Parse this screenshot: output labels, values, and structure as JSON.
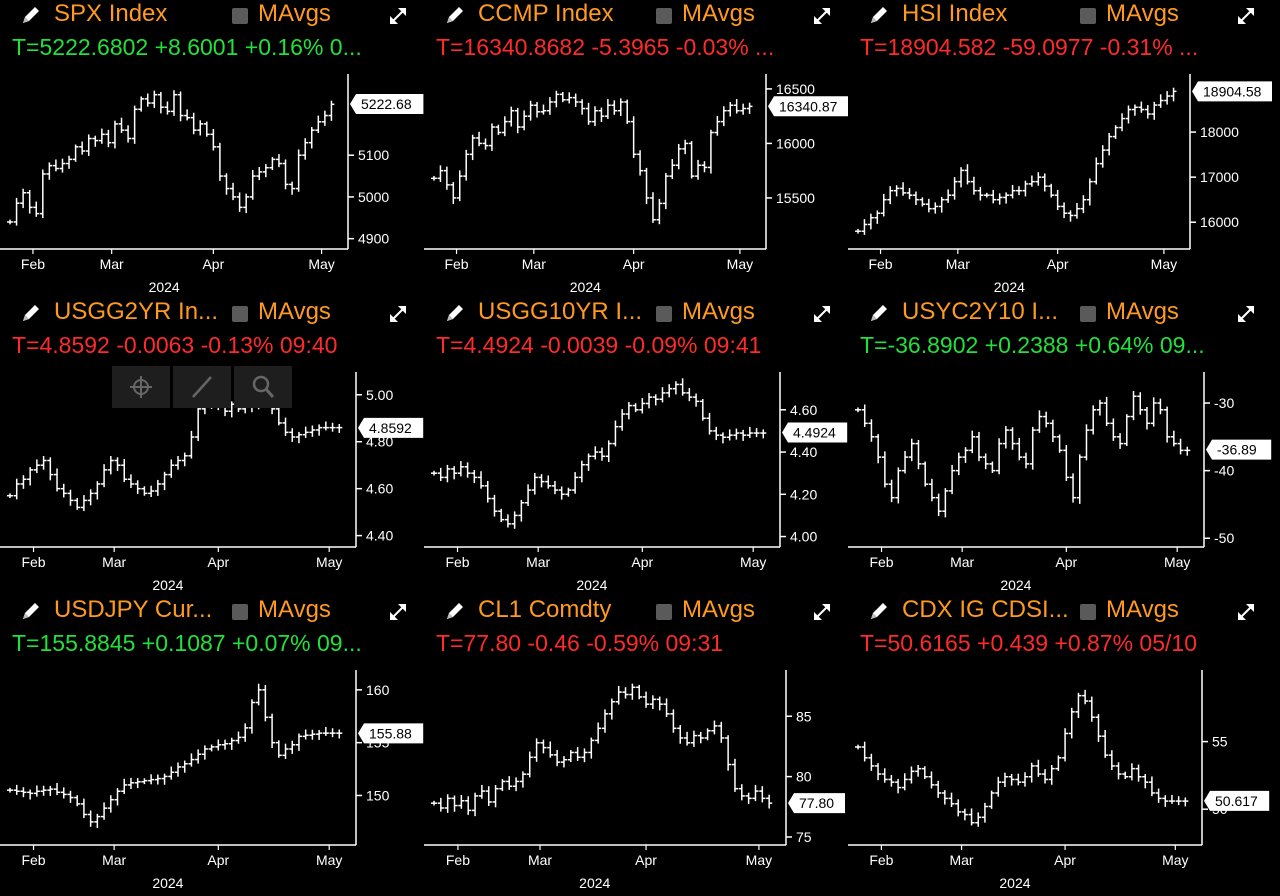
{
  "chart_data": [
    {
      "id": "spx",
      "type": "line",
      "title": "SPX Index",
      "ma_label": "MAvgs",
      "quote": "T=5222.6802 +8.6001 +0.16% 0...",
      "quote_color": "up",
      "x_months": [
        "Feb",
        "Mar",
        "Apr",
        "May"
      ],
      "year": "2024",
      "yticks": [
        4900,
        5000,
        5100
      ],
      "ylim": [
        4880,
        5285
      ],
      "last": 5222.6802,
      "last_label": "5222.68",
      "x": [
        0,
        2,
        4,
        6,
        8,
        10,
        12,
        14,
        16,
        18,
        20,
        22,
        24,
        26,
        28,
        30,
        32,
        34,
        36,
        38,
        40,
        42,
        44,
        46,
        48,
        50,
        52,
        54,
        56,
        58,
        60,
        62,
        64,
        66,
        68,
        70,
        72,
        74,
        76,
        78,
        80,
        82,
        84,
        86,
        88,
        90,
        92,
        94,
        96,
        98
      ],
      "values": [
        4940,
        4985,
        5010,
        4975,
        4960,
        5055,
        5075,
        5068,
        5080,
        5090,
        5120,
        5110,
        5140,
        5135,
        5150,
        5130,
        5175,
        5160,
        5140,
        5210,
        5235,
        5225,
        5245,
        5215,
        5205,
        5245,
        5195,
        5190,
        5160,
        5175,
        5150,
        5120,
        5050,
        5020,
        5000,
        4975,
        5000,
        5050,
        5060,
        5070,
        5090,
        5080,
        5030,
        5020,
        5100,
        5130,
        5160,
        5180,
        5195,
        5222
      ]
    },
    {
      "id": "ccmp",
      "type": "line",
      "title": "CCMP Index",
      "ma_label": "MAvgs",
      "quote": "T=16340.8682 -5.3965 -0.03% ...",
      "quote_color": "down",
      "x_months": [
        "Feb",
        "Mar",
        "Apr",
        "May"
      ],
      "year": "2024",
      "yticks": [
        15500,
        16000,
        16500
      ],
      "ylim": [
        15050,
        16600
      ],
      "last": 16340.8682,
      "last_label": "16340.87",
      "x": [
        0,
        2,
        4,
        6,
        8,
        10,
        12,
        14,
        16,
        18,
        20,
        22,
        24,
        26,
        28,
        30,
        32,
        34,
        36,
        38,
        40,
        42,
        44,
        46,
        48,
        50,
        52,
        54,
        56,
        58,
        60,
        62,
        64,
        66,
        68,
        70,
        72,
        74,
        76,
        78,
        80,
        82,
        84,
        86,
        88,
        90,
        92,
        94,
        96,
        98
      ],
      "values": [
        15680,
        15750,
        15620,
        15500,
        15700,
        15900,
        16050,
        16000,
        15980,
        16150,
        16100,
        16200,
        16300,
        16150,
        16250,
        16350,
        16290,
        16300,
        16380,
        16450,
        16400,
        16420,
        16380,
        16320,
        16200,
        16300,
        16250,
        16350,
        16300,
        16380,
        16200,
        15900,
        15750,
        15500,
        15300,
        15450,
        15700,
        15800,
        15950,
        16000,
        15700,
        15800,
        15780,
        16100,
        16200,
        16300,
        16350,
        16300,
        16320,
        16340
      ]
    },
    {
      "id": "hsi",
      "type": "line",
      "title": "HSI Index",
      "ma_label": "MAvgs",
      "quote": "T=18904.582 -59.0977 -0.31% ...",
      "quote_color": "down",
      "x_months": [
        "Feb",
        "Mar",
        "Apr",
        "May"
      ],
      "year": "2024",
      "yticks": [
        16000,
        17000,
        18000
      ],
      "ylim": [
        15450,
        19200
      ],
      "last": 18904.582,
      "last_label": "18904.58",
      "x": [
        0,
        2,
        4,
        6,
        8,
        10,
        12,
        14,
        16,
        18,
        20,
        22,
        24,
        26,
        28,
        30,
        32,
        34,
        36,
        38,
        40,
        42,
        44,
        46,
        48,
        50,
        52,
        54,
        56,
        58,
        60,
        62,
        64,
        66,
        68,
        70,
        72,
        74,
        76,
        78,
        80,
        82,
        84,
        86,
        88,
        90,
        92,
        94,
        96,
        98
      ],
      "values": [
        15800,
        15950,
        16100,
        16200,
        16500,
        16700,
        16750,
        16650,
        16600,
        16500,
        16400,
        16300,
        16350,
        16500,
        16600,
        16900,
        17150,
        16900,
        16700,
        16600,
        16600,
        16500,
        16550,
        16600,
        16700,
        16700,
        16850,
        16900,
        17000,
        16800,
        16600,
        16350,
        16200,
        16150,
        16300,
        16500,
        16900,
        17300,
        17600,
        17900,
        18100,
        18300,
        18500,
        18550,
        18500,
        18400,
        18600,
        18700,
        18800,
        18904
      ]
    },
    {
      "id": "usgg2yr",
      "type": "line",
      "title": "USGG2YR In...",
      "ma_label": "MAvgs",
      "quote": "T=4.8592 -0.0063 -0.13% 09:40",
      "quote_color": "down",
      "x_months": [
        "Feb",
        "Mar",
        "Apr",
        "May"
      ],
      "year": "2024",
      "yticks": [
        4.4,
        4.6,
        4.8,
        5.0
      ],
      "ylim": [
        4.36,
        5.08
      ],
      "last": 4.8592,
      "last_label": "4.8592",
      "x": [
        0,
        2,
        4,
        6,
        8,
        10,
        12,
        14,
        16,
        18,
        20,
        22,
        24,
        26,
        28,
        30,
        32,
        34,
        36,
        38,
        40,
        42,
        44,
        46,
        48,
        50,
        52,
        54,
        56,
        58,
        60,
        62,
        64,
        66,
        68,
        70,
        72,
        74,
        76,
        78,
        80,
        82,
        84,
        86,
        88,
        90,
        92,
        94,
        96,
        98
      ],
      "values": [
        4.57,
        4.62,
        4.64,
        4.68,
        4.7,
        4.72,
        4.66,
        4.6,
        4.58,
        4.55,
        4.52,
        4.55,
        4.58,
        4.62,
        4.68,
        4.72,
        4.7,
        4.64,
        4.62,
        4.6,
        4.58,
        4.59,
        4.62,
        4.66,
        4.7,
        4.72,
        4.74,
        4.82,
        4.94,
        4.96,
        4.95,
        4.98,
        4.93,
        4.96,
        4.94,
        4.97,
        4.95,
        5.0,
        4.99,
        4.94,
        4.88,
        4.84,
        4.82,
        4.83,
        4.84,
        4.85,
        4.86,
        4.86,
        4.86,
        4.86
      ]
    },
    {
      "id": "usgg10yr",
      "type": "line",
      "title": "USGG10YR I...",
      "ma_label": "MAvgs",
      "quote": "T=4.4924 -0.0039 -0.09% 09:41",
      "quote_color": "down",
      "x_months": [
        "Feb",
        "Mar",
        "Apr",
        "May"
      ],
      "year": "2024",
      "yticks": [
        4.0,
        4.2,
        4.4,
        4.6
      ],
      "ylim": [
        3.96,
        4.76
      ],
      "last": 4.4924,
      "last_label": "4.4924",
      "x": [
        0,
        2,
        4,
        6,
        8,
        10,
        12,
        14,
        16,
        18,
        20,
        22,
        24,
        26,
        28,
        30,
        32,
        34,
        36,
        38,
        40,
        42,
        44,
        46,
        48,
        50,
        52,
        54,
        56,
        58,
        60,
        62,
        64,
        66,
        68,
        70,
        72,
        74,
        76,
        78,
        80,
        82,
        84,
        86,
        88,
        90,
        92,
        94,
        96,
        98
      ],
      "values": [
        4.3,
        4.28,
        4.32,
        4.3,
        4.33,
        4.3,
        4.28,
        4.24,
        4.18,
        4.12,
        4.08,
        4.06,
        4.1,
        4.16,
        4.22,
        4.28,
        4.26,
        4.24,
        4.22,
        4.2,
        4.22,
        4.28,
        4.34,
        4.38,
        4.4,
        4.38,
        4.44,
        4.52,
        4.58,
        4.62,
        4.6,
        4.63,
        4.66,
        4.65,
        4.68,
        4.7,
        4.72,
        4.68,
        4.66,
        4.64,
        4.56,
        4.5,
        4.48,
        4.47,
        4.48,
        4.49,
        4.48,
        4.49,
        4.49,
        4.49
      ]
    },
    {
      "id": "usyc2y10",
      "type": "line",
      "title": "USYC2Y10 I...",
      "ma_label": "MAvgs",
      "quote": "T=-36.8902 +0.2388 +0.64% 09...",
      "quote_color": "up",
      "x_months": [
        "Feb",
        "Mar",
        "Apr",
        "May"
      ],
      "year": "2024",
      "yticks": [
        -50,
        -40,
        -30
      ],
      "ylim": [
        -51,
        -26
      ],
      "last": -36.8902,
      "last_label": "-36.89",
      "x": [
        0,
        2,
        4,
        6,
        8,
        10,
        12,
        14,
        16,
        18,
        20,
        22,
        24,
        26,
        28,
        30,
        32,
        34,
        36,
        38,
        40,
        42,
        44,
        46,
        48,
        50,
        52,
        54,
        56,
        58,
        60,
        62,
        64,
        66,
        68,
        70,
        72,
        74,
        76,
        78,
        80,
        82,
        84,
        86,
        88,
        90,
        92,
        94,
        96,
        98
      ],
      "values": [
        -31,
        -33,
        -35,
        -38,
        -42,
        -44,
        -40,
        -38,
        -36,
        -39,
        -42,
        -44,
        -46,
        -43,
        -40,
        -38,
        -37,
        -35,
        -38,
        -39,
        -40,
        -36,
        -34,
        -36,
        -38,
        -39,
        -34,
        -32,
        -33,
        -35,
        -37,
        -41,
        -44,
        -38,
        -34,
        -31,
        -30,
        -33,
        -35,
        -36,
        -32,
        -29,
        -31,
        -33,
        -30,
        -31,
        -35,
        -36,
        -37,
        -37
      ]
    },
    {
      "id": "usdjpy",
      "type": "line",
      "title": "USDJPY Cur...",
      "ma_label": "MAvgs",
      "quote": "T=155.8845 +0.1087 +0.07% 09...",
      "quote_color": "up",
      "x_months": [
        "Feb",
        "Mar",
        "Apr",
        "May"
      ],
      "year": "2024",
      "yticks": [
        150,
        155,
        160
      ],
      "ylim": [
        145.5,
        161.5
      ],
      "last": 155.8845,
      "last_label": "155.88",
      "x": [
        0,
        2,
        4,
        6,
        8,
        10,
        12,
        14,
        16,
        18,
        20,
        22,
        24,
        26,
        28,
        30,
        32,
        34,
        36,
        38,
        40,
        42,
        44,
        46,
        48,
        50,
        52,
        54,
        56,
        58,
        60,
        62,
        64,
        66,
        68,
        70,
        72,
        74,
        76,
        78,
        80,
        82,
        84,
        86,
        88,
        90,
        92,
        94,
        96,
        98
      ],
      "values": [
        150.5,
        150.4,
        150.3,
        150.2,
        150.4,
        150.5,
        150.6,
        150.3,
        150.1,
        149.8,
        149.2,
        148.2,
        147.5,
        148.0,
        148.8,
        149.6,
        150.4,
        151.0,
        151.2,
        151.3,
        151.4,
        151.5,
        151.6,
        151.8,
        152.2,
        152.7,
        153.0,
        153.4,
        153.9,
        154.4,
        154.6,
        154.8,
        154.9,
        155.2,
        155.5,
        156.4,
        158.8,
        160.0,
        157.4,
        155.0,
        153.8,
        154.4,
        154.8,
        155.6,
        155.7,
        155.8,
        155.9,
        155.9,
        155.9,
        155.9
      ]
    },
    {
      "id": "cl1",
      "type": "line",
      "title": "CL1 Comdty",
      "ma_label": "MAvgs",
      "quote": "T=77.80 -0.46 -0.59% 09:31",
      "quote_color": "down",
      "x_months": [
        "Feb",
        "Mar",
        "Apr",
        "May"
      ],
      "year": "2024",
      "yticks": [
        75,
        80,
        85
      ],
      "ylim": [
        74.5,
        88.5
      ],
      "last": 77.8,
      "last_label": "77.80",
      "x": [
        0,
        2,
        4,
        6,
        8,
        10,
        12,
        14,
        16,
        18,
        20,
        22,
        24,
        26,
        28,
        30,
        32,
        34,
        36,
        38,
        40,
        42,
        44,
        46,
        48,
        50,
        52,
        54,
        56,
        58,
        60,
        62,
        64,
        66,
        68,
        70,
        72,
        74,
        76,
        78,
        80,
        82,
        84,
        86,
        88,
        90,
        92,
        94,
        96,
        98
      ],
      "values": [
        77.8,
        77.4,
        78.2,
        77.6,
        78.0,
        77.2,
        78.4,
        78.8,
        77.9,
        79.0,
        79.6,
        79.2,
        79.6,
        80.2,
        81.6,
        82.8,
        82.4,
        81.8,
        81.2,
        81.4,
        82.0,
        81.6,
        82.0,
        83.0,
        84.0,
        85.2,
        86.2,
        87.0,
        86.8,
        87.4,
        86.6,
        86.0,
        86.4,
        86.0,
        85.2,
        84.0,
        83.2,
        82.8,
        83.4,
        83.2,
        83.8,
        84.2,
        83.2,
        81.0,
        79.0,
        78.4,
        78.2,
        78.8,
        78.2,
        77.8
      ]
    },
    {
      "id": "cdx",
      "type": "line",
      "title": "CDX IG CDSI...",
      "ma_label": "MAvgs",
      "quote": "T=50.6165 +0.439 +0.87% 05/10",
      "quote_color": "down",
      "x_months": [
        "Feb",
        "Mar",
        "Apr",
        "May"
      ],
      "year": "2024",
      "yticks": [
        50,
        55
      ],
      "ylim": [
        47.5,
        60
      ],
      "last": 50.6165,
      "last_label": "50.617",
      "x": [
        0,
        2,
        4,
        6,
        8,
        10,
        12,
        14,
        16,
        18,
        20,
        22,
        24,
        26,
        28,
        30,
        32,
        34,
        36,
        38,
        40,
        42,
        44,
        46,
        48,
        50,
        52,
        54,
        56,
        58,
        60,
        62,
        64,
        66,
        68,
        70,
        72,
        74,
        76,
        78,
        80,
        82,
        84,
        86,
        88,
        90,
        92,
        94,
        96,
        98
      ],
      "values": [
        54.6,
        53.8,
        53.2,
        52.6,
        52.2,
        52.0,
        51.6,
        52.2,
        52.8,
        53.0,
        52.4,
        51.8,
        51.2,
        50.8,
        50.4,
        49.8,
        49.6,
        49.0,
        49.4,
        50.2,
        51.2,
        52.0,
        52.4,
        52.2,
        52.0,
        52.4,
        53.2,
        52.6,
        52.2,
        53.0,
        53.8,
        55.6,
        57.2,
        58.4,
        58.0,
        56.8,
        55.4,
        54.0,
        53.2,
        52.6,
        52.4,
        53.0,
        52.4,
        52.0,
        51.2,
        50.8,
        50.6,
        50.6,
        50.6,
        50.6
      ]
    }
  ]
}
